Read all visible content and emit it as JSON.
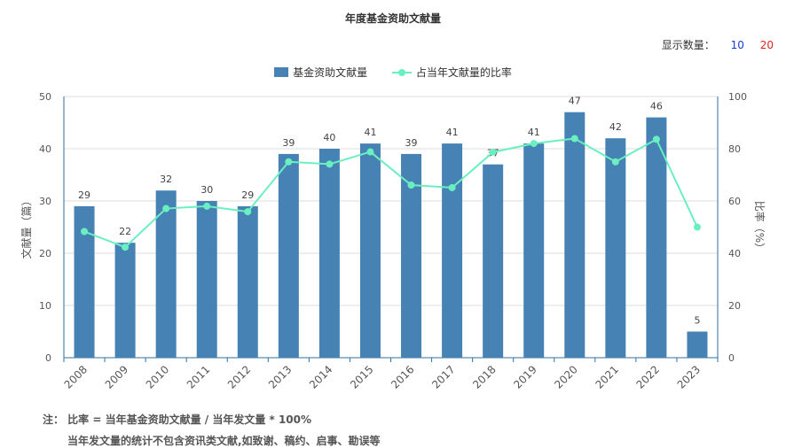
{
  "header": {
    "title": "年度基金资助文献量"
  },
  "display_count": {
    "label": "显示数量：",
    "options": [
      "10",
      "20"
    ]
  },
  "legend": {
    "bar_label": "基金资助文献量",
    "line_label": "占当年文献量的比率"
  },
  "notes": {
    "line1": "注： 比率 = 当年基金资助文献量 / 当年发文量 * 100%",
    "line2": "当年发文量的统计不包含资讯类文献,如致谢、稿约、启事、勘误等"
  },
  "colors": {
    "bar": "#4682b4",
    "line": "#6af0c0",
    "axis": "#2f6fa3",
    "grid": "#dddddd"
  },
  "chart_data": {
    "type": "bar",
    "categories": [
      "2008",
      "2009",
      "2010",
      "2011",
      "2012",
      "2013",
      "2014",
      "2015",
      "2016",
      "2017",
      "2018",
      "2019",
      "2020",
      "2021",
      "2022",
      "2023"
    ],
    "series": [
      {
        "name": "基金资助文献量",
        "type": "bar",
        "axis": "left",
        "values": [
          29,
          22,
          32,
          30,
          29,
          39,
          40,
          41,
          39,
          41,
          37,
          41,
          47,
          42,
          46,
          5
        ]
      },
      {
        "name": "占当年文献量的比率",
        "type": "line",
        "axis": "right",
        "values": [
          48.3,
          42.3,
          57.1,
          58.0,
          55.9,
          75.0,
          74.1,
          78.8,
          66.1,
          65.1,
          78.7,
          82.0,
          83.9,
          75.0,
          83.6,
          50.0
        ]
      }
    ],
    "ylabel": "文献量（篇）",
    "ylabel_right": "比率（%）",
    "ylim": [
      0,
      50
    ],
    "ylim_right": [
      0,
      100
    ],
    "yticks": [
      0,
      10,
      20,
      30,
      40,
      50
    ],
    "yticks_right": [
      0,
      20,
      40,
      60,
      80,
      100
    ],
    "grid": true,
    "legend_position": "top-center"
  }
}
